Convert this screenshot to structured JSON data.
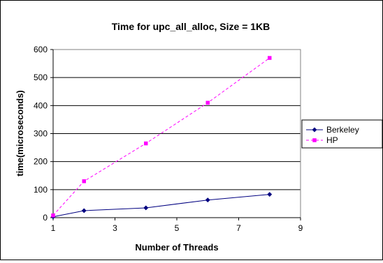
{
  "chart_data": {
    "type": "line",
    "title": "Time for upc_all_alloc, Size = 1KB",
    "xlabel": "Number of Threads",
    "ylabel": "time(microseconds)",
    "xlim": [
      1,
      9
    ],
    "ylim": [
      0,
      600
    ],
    "xticks": [
      "1",
      "3",
      "5",
      "7",
      "9"
    ],
    "yticks": [
      "0",
      "100",
      "200",
      "300",
      "400",
      "500",
      "600"
    ],
    "grid": "horizontal",
    "legend_position": "right",
    "x": [
      1,
      2,
      4,
      6,
      8
    ],
    "series": [
      {
        "name": "Berkeley",
        "values": [
          3,
          25,
          35,
          63,
          83
        ],
        "color": "#000080",
        "line_style": "solid",
        "marker": "diamond"
      },
      {
        "name": "HP",
        "values": [
          8,
          130,
          265,
          410,
          570
        ],
        "color": "#ff00ff",
        "line_style": "dashed",
        "marker": "square"
      }
    ]
  }
}
